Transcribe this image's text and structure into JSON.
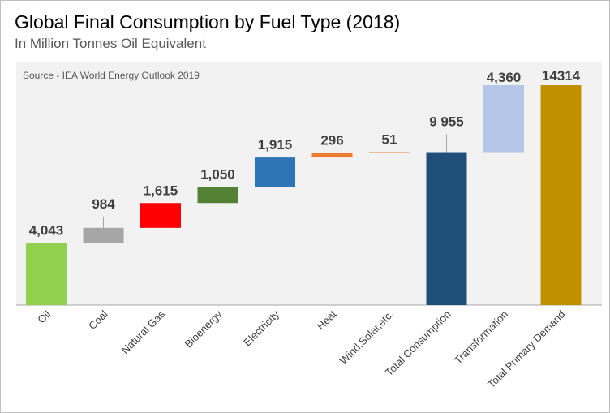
{
  "title": "Global Final Consumption by Fuel Type (2018)",
  "subtitle": "In Million Tonnes Oil Equivalent",
  "chart_data": {
    "type": "bar",
    "subtype": "waterfall",
    "title": "Global Final Consumption by Fuel Type (2018)",
    "subtitle": "In Million Tonnes Oil Equivalent",
    "source": "Source - IEA World Energy Outlook 2019",
    "categories": [
      "Oil",
      "Coal",
      "Natural Gas",
      "Bioenergy",
      "Electricity",
      "Heat",
      "Wind,Solar,etc.",
      "Total Consumption",
      "Transformation",
      "Total Primary Demand"
    ],
    "bars": [
      {
        "category": "Oil",
        "label": "4,043",
        "start": 0,
        "end": 4043,
        "color": "#92d050"
      },
      {
        "category": "Coal",
        "label": "984",
        "start": 4043,
        "end": 5027,
        "color": "#a6a6a6"
      },
      {
        "category": "Natural Gas",
        "label": "1,615",
        "start": 5027,
        "end": 6642,
        "color": "#ff0000"
      },
      {
        "category": "Bioenergy",
        "label": "1,050",
        "start": 6642,
        "end": 7692,
        "color": "#548235"
      },
      {
        "category": "Electricity",
        "label": "1,915",
        "start": 7692,
        "end": 9607,
        "color": "#2e75b6"
      },
      {
        "category": "Heat",
        "label": "296",
        "start": 9607,
        "end": 9903,
        "color": "#ed7d31"
      },
      {
        "category": "Wind,Solar,etc.",
        "label": "51",
        "start": 9903,
        "end": 9954,
        "color": "#ed7d31"
      },
      {
        "category": "Total Consumption",
        "label": "9 955",
        "start": 0,
        "end": 9955,
        "color": "#1f4e79"
      },
      {
        "category": "Transformation",
        "label": "4,360",
        "start": 9955,
        "end": 14315,
        "color": "#b4c7e7"
      },
      {
        "category": "Total Primary Demand",
        "label": "14314",
        "start": 0,
        "end": 14314,
        "color": "#bf9000"
      }
    ],
    "ylim": [
      0,
      14314
    ],
    "xlabel": "",
    "ylabel": "",
    "grid": false,
    "legend": "none"
  }
}
